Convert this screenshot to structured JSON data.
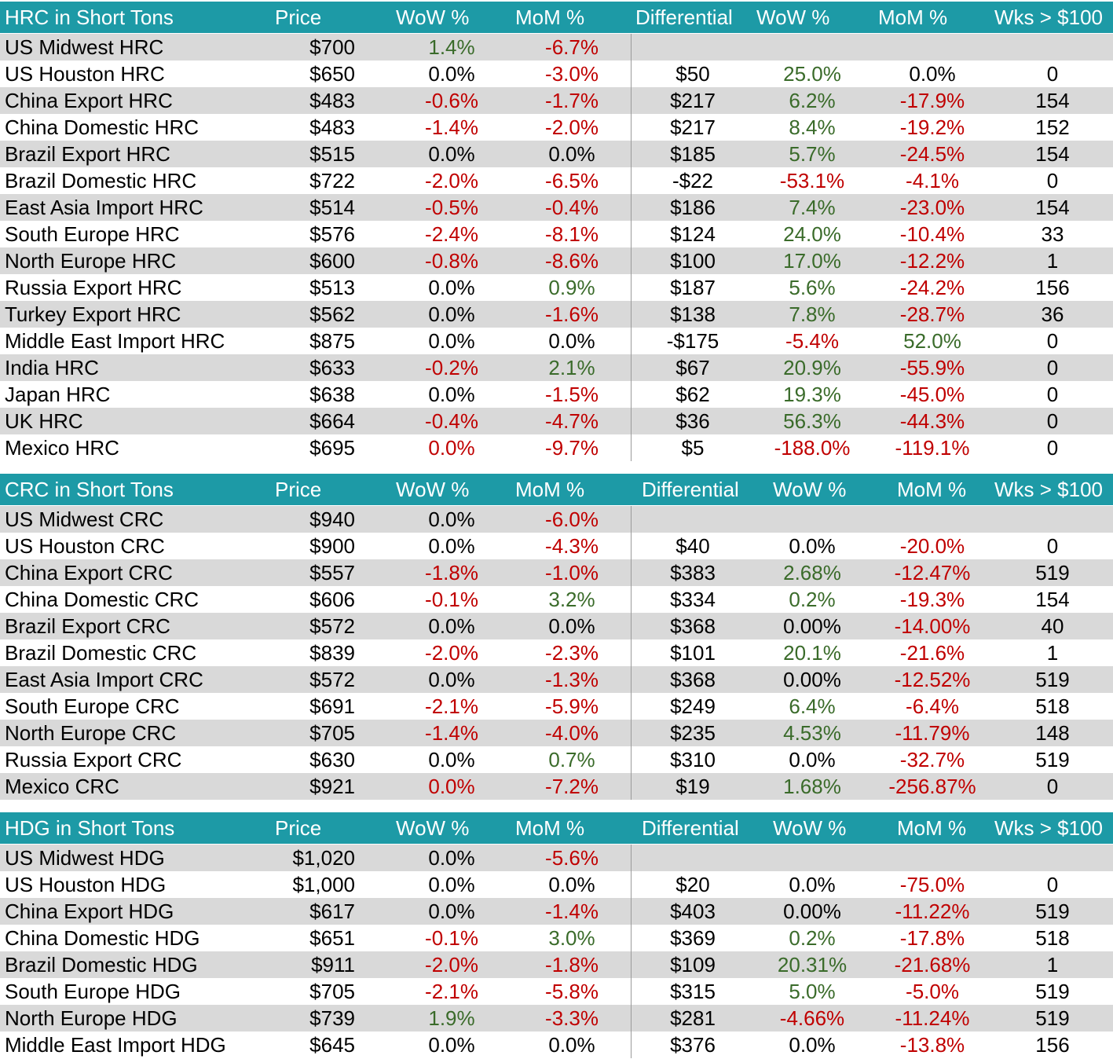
{
  "sections": [
    {
      "id": "hrc",
      "headers": [
        "HRC in Short Tons",
        "Price",
        "WoW %",
        "MoM %",
        "Differential",
        "WoW %",
        "MoM %",
        "Wks > $100"
      ],
      "rows": [
        {
          "name": "US Midwest HRC",
          "price": "$700",
          "wow": "1.4%",
          "wow_c": "pos",
          "mom": "-6.7%",
          "mom_c": "neg",
          "diff": "",
          "dwow": "",
          "dwow_c": "neu",
          "dmom": "",
          "dmom_c": "neu",
          "wks": ""
        },
        {
          "name": "US Houston HRC",
          "price": "$650",
          "wow": "0.0%",
          "wow_c": "neu",
          "mom": "-3.0%",
          "mom_c": "neg",
          "diff": "$50",
          "dwow": "25.0%",
          "dwow_c": "pos",
          "dmom": "0.0%",
          "dmom_c": "neu",
          "wks": "0"
        },
        {
          "name": "China Export HRC",
          "price": "$483",
          "wow": "-0.6%",
          "wow_c": "neg",
          "mom": "-1.7%",
          "mom_c": "neg",
          "diff": "$217",
          "dwow": "6.2%",
          "dwow_c": "pos",
          "dmom": "-17.9%",
          "dmom_c": "neg",
          "wks": "154"
        },
        {
          "name": "China Domestic HRC",
          "price": "$483",
          "wow": "-1.4%",
          "wow_c": "neg",
          "mom": "-2.0%",
          "mom_c": "neg",
          "diff": "$217",
          "dwow": "8.4%",
          "dwow_c": "pos",
          "dmom": "-19.2%",
          "dmom_c": "neg",
          "wks": "152"
        },
        {
          "name": "Brazil Export HRC",
          "price": "$515",
          "wow": "0.0%",
          "wow_c": "neu",
          "mom": "0.0%",
          "mom_c": "neu",
          "diff": "$185",
          "dwow": "5.7%",
          "dwow_c": "pos",
          "dmom": "-24.5%",
          "dmom_c": "neg",
          "wks": "154"
        },
        {
          "name": "Brazil Domestic HRC",
          "price": "$722",
          "wow": "-2.0%",
          "wow_c": "neg",
          "mom": "-6.5%",
          "mom_c": "neg",
          "diff": "-$22",
          "dwow": "-53.1%",
          "dwow_c": "neg",
          "dmom": "-4.1%",
          "dmom_c": "neg",
          "wks": "0"
        },
        {
          "name": "East Asia Import HRC",
          "price": "$514",
          "wow": "-0.5%",
          "wow_c": "neg",
          "mom": "-0.4%",
          "mom_c": "neg",
          "diff": "$186",
          "dwow": "7.4%",
          "dwow_c": "pos",
          "dmom": "-23.0%",
          "dmom_c": "neg",
          "wks": "154"
        },
        {
          "name": "South Europe HRC",
          "price": "$576",
          "wow": "-2.4%",
          "wow_c": "neg",
          "mom": "-8.1%",
          "mom_c": "neg",
          "diff": "$124",
          "dwow": "24.0%",
          "dwow_c": "pos",
          "dmom": "-10.4%",
          "dmom_c": "neg",
          "wks": "33"
        },
        {
          "name": "North Europe HRC",
          "price": "$600",
          "wow": "-0.8%",
          "wow_c": "neg",
          "mom": "-8.6%",
          "mom_c": "neg",
          "diff": "$100",
          "dwow": "17.0%",
          "dwow_c": "pos",
          "dmom": "-12.2%",
          "dmom_c": "neg",
          "wks": "1"
        },
        {
          "name": "Russia Export HRC",
          "price": "$513",
          "wow": "0.0%",
          "wow_c": "neu",
          "mom": "0.9%",
          "mom_c": "pos",
          "diff": "$187",
          "dwow": "5.6%",
          "dwow_c": "pos",
          "dmom": "-24.2%",
          "dmom_c": "neg",
          "wks": "156"
        },
        {
          "name": "Turkey Export HRC",
          "price": "$562",
          "wow": "0.0%",
          "wow_c": "neu",
          "mom": "-1.6%",
          "mom_c": "neg",
          "diff": "$138",
          "dwow": "7.8%",
          "dwow_c": "pos",
          "dmom": "-28.7%",
          "dmom_c": "neg",
          "wks": "36"
        },
        {
          "name": "Middle East Import HRC",
          "price": "$875",
          "wow": "0.0%",
          "wow_c": "neu",
          "mom": "0.0%",
          "mom_c": "neu",
          "diff": "-$175",
          "dwow": "-5.4%",
          "dwow_c": "neg",
          "dmom": "52.0%",
          "dmom_c": "pos",
          "wks": "0"
        },
        {
          "name": "India HRC",
          "price": "$633",
          "wow": "-0.2%",
          "wow_c": "neg",
          "mom": "2.1%",
          "mom_c": "pos",
          "diff": "$67",
          "dwow": "20.9%",
          "dwow_c": "pos",
          "dmom": "-55.9%",
          "dmom_c": "neg",
          "wks": "0"
        },
        {
          "name": "Japan HRC",
          "price": "$638",
          "wow": "0.0%",
          "wow_c": "neu",
          "mom": "-1.5%",
          "mom_c": "neg",
          "diff": "$62",
          "dwow": "19.3%",
          "dwow_c": "pos",
          "dmom": "-45.0%",
          "dmom_c": "neg",
          "wks": "0"
        },
        {
          "name": "UK HRC",
          "price": "$664",
          "wow": "-0.4%",
          "wow_c": "neg",
          "mom": "-4.7%",
          "mom_c": "neg",
          "diff": "$36",
          "dwow": "56.3%",
          "dwow_c": "pos",
          "dmom": "-44.3%",
          "dmom_c": "neg",
          "wks": "0"
        },
        {
          "name": "Mexico HRC",
          "price": "$695",
          "wow": "0.0%",
          "wow_c": "neg",
          "mom": "-9.7%",
          "mom_c": "neg",
          "diff": "$5",
          "dwow": "-188.0%",
          "dwow_c": "neg",
          "dmom": "-119.1%",
          "dmom_c": "neg",
          "wks": "0"
        }
      ]
    },
    {
      "id": "crc",
      "headers": [
        "CRC in Short Tons",
        "Price",
        "WoW %",
        "MoM %",
        "Differential",
        "WoW %",
        "MoM %",
        "Wks > $100"
      ],
      "rows": [
        {
          "name": "US Midwest CRC",
          "price": "$940",
          "wow": "0.0%",
          "wow_c": "neu",
          "mom": "-6.0%",
          "mom_c": "neg",
          "diff": "",
          "dwow": "",
          "dwow_c": "neu",
          "dmom": "",
          "dmom_c": "neu",
          "wks": ""
        },
        {
          "name": "US Houston CRC",
          "price": "$900",
          "wow": "0.0%",
          "wow_c": "neu",
          "mom": "-4.3%",
          "mom_c": "neg",
          "diff": "$40",
          "dwow": "0.0%",
          "dwow_c": "neu",
          "dmom": "-20.0%",
          "dmom_c": "neg",
          "wks": "0"
        },
        {
          "name": "China Export CRC",
          "price": "$557",
          "wow": "-1.8%",
          "wow_c": "neg",
          "mom": "-1.0%",
          "mom_c": "neg",
          "diff": "$383",
          "dwow": "2.68%",
          "dwow_c": "pos",
          "dmom": "-12.47%",
          "dmom_c": "neg",
          "wks": "519"
        },
        {
          "name": "China Domestic CRC",
          "price": "$606",
          "wow": "-0.1%",
          "wow_c": "neg",
          "mom": "3.2%",
          "mom_c": "pos",
          "diff": "$334",
          "dwow": "0.2%",
          "dwow_c": "pos",
          "dmom": "-19.3%",
          "dmom_c": "neg",
          "wks": "154"
        },
        {
          "name": "Brazil Export CRC",
          "price": "$572",
          "wow": "0.0%",
          "wow_c": "neu",
          "mom": "0.0%",
          "mom_c": "neu",
          "diff": "$368",
          "dwow": "0.00%",
          "dwow_c": "neu",
          "dmom": "-14.00%",
          "dmom_c": "neg",
          "wks": "40"
        },
        {
          "name": "Brazil Domestic CRC",
          "price": "$839",
          "wow": "-2.0%",
          "wow_c": "neg",
          "mom": "-2.3%",
          "mom_c": "neg",
          "diff": "$101",
          "dwow": "20.1%",
          "dwow_c": "pos",
          "dmom": "-21.6%",
          "dmom_c": "neg",
          "wks": "1"
        },
        {
          "name": "East Asia Import CRC",
          "price": "$572",
          "wow": "0.0%",
          "wow_c": "neu",
          "mom": "-1.3%",
          "mom_c": "neg",
          "diff": "$368",
          "dwow": "0.00%",
          "dwow_c": "neu",
          "dmom": "-12.52%",
          "dmom_c": "neg",
          "wks": "519"
        },
        {
          "name": "South Europe CRC",
          "price": "$691",
          "wow": "-2.1%",
          "wow_c": "neg",
          "mom": "-5.9%",
          "mom_c": "neg",
          "diff": "$249",
          "dwow": "6.4%",
          "dwow_c": "pos",
          "dmom": "-6.4%",
          "dmom_c": "neg",
          "wks": "518"
        },
        {
          "name": "North Europe CRC",
          "price": "$705",
          "wow": "-1.4%",
          "wow_c": "neg",
          "mom": "-4.0%",
          "mom_c": "neg",
          "diff": "$235",
          "dwow": "4.53%",
          "dwow_c": "pos",
          "dmom": "-11.79%",
          "dmom_c": "neg",
          "wks": "148"
        },
        {
          "name": "Russia Export CRC",
          "price": "$630",
          "wow": "0.0%",
          "wow_c": "neu",
          "mom": "0.7%",
          "mom_c": "pos",
          "diff": "$310",
          "dwow": "0.0%",
          "dwow_c": "neu",
          "dmom": "-32.7%",
          "dmom_c": "neg",
          "wks": "519"
        },
        {
          "name": "Mexico CRC",
          "price": "$921",
          "wow": "0.0%",
          "wow_c": "neg",
          "mom": "-7.2%",
          "mom_c": "neg",
          "diff": "$19",
          "dwow": "1.68%",
          "dwow_c": "pos",
          "dmom": "-256.87%",
          "dmom_c": "neg",
          "wks": "0"
        }
      ]
    },
    {
      "id": "hdg",
      "headers": [
        "HDG in Short Tons",
        "Price",
        "WoW %",
        "MoM %",
        "Differential",
        "WoW %",
        "MoM %",
        "Wks > $100"
      ],
      "rows": [
        {
          "name": "US Midwest HDG",
          "price": "$1,020",
          "wow": "0.0%",
          "wow_c": "neu",
          "mom": "-5.6%",
          "mom_c": "neg",
          "diff": "",
          "dwow": "",
          "dwow_c": "neu",
          "dmom": "",
          "dmom_c": "neu",
          "wks": ""
        },
        {
          "name": "US Houston HDG",
          "price": "$1,000",
          "wow": "0.0%",
          "wow_c": "neu",
          "mom": "0.0%",
          "mom_c": "neu",
          "diff": "$20",
          "dwow": "0.0%",
          "dwow_c": "neu",
          "dmom": "-75.0%",
          "dmom_c": "neg",
          "wks": "0"
        },
        {
          "name": "China Export HDG",
          "price": "$617",
          "wow": "0.0%",
          "wow_c": "neu",
          "mom": "-1.4%",
          "mom_c": "neg",
          "diff": "$403",
          "dwow": "0.00%",
          "dwow_c": "neu",
          "dmom": "-11.22%",
          "dmom_c": "neg",
          "wks": "519"
        },
        {
          "name": "China Domestic HDG",
          "price": "$651",
          "wow": "-0.1%",
          "wow_c": "neg",
          "mom": "3.0%",
          "mom_c": "pos",
          "diff": "$369",
          "dwow": "0.2%",
          "dwow_c": "pos",
          "dmom": "-17.8%",
          "dmom_c": "neg",
          "wks": "518"
        },
        {
          "name": "Brazil Domestic HDG",
          "price": "$911",
          "wow": "-2.0%",
          "wow_c": "neg",
          "mom": "-1.8%",
          "mom_c": "neg",
          "diff": "$109",
          "dwow": "20.31%",
          "dwow_c": "pos",
          "dmom": "-21.68%",
          "dmom_c": "neg",
          "wks": "1"
        },
        {
          "name": "South Europe HDG",
          "price": "$705",
          "wow": "-2.1%",
          "wow_c": "neg",
          "mom": "-5.8%",
          "mom_c": "neg",
          "diff": "$315",
          "dwow": "5.0%",
          "dwow_c": "pos",
          "dmom": "-5.0%",
          "dmom_c": "neg",
          "wks": "519"
        },
        {
          "name": "North Europe HDG",
          "price": "$739",
          "wow": "1.9%",
          "wow_c": "pos",
          "mom": "-3.3%",
          "mom_c": "neg",
          "diff": "$281",
          "dwow": "-4.66%",
          "dwow_c": "neg",
          "dmom": "-11.24%",
          "dmom_c": "neg",
          "wks": "519"
        },
        {
          "name": "Middle East Import HDG",
          "price": "$645",
          "wow": "0.0%",
          "wow_c": "neu",
          "mom": "0.0%",
          "mom_c": "neu",
          "diff": "$376",
          "dwow": "0.0%",
          "dwow_c": "neu",
          "dmom": "-13.8%",
          "dmom_c": "neg",
          "wks": "156"
        }
      ]
    }
  ]
}
